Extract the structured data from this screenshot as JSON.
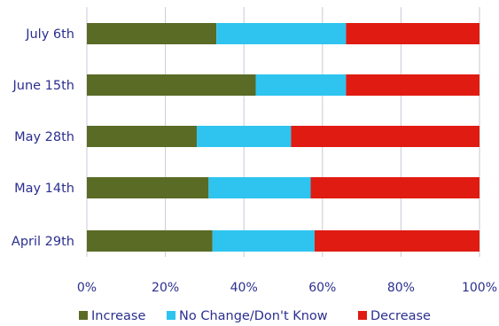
{
  "chart_data": {
    "type": "bar",
    "orientation": "horizontal",
    "stacked": "percent",
    "categories": [
      "July 6th",
      "June 15th",
      "May 28th",
      "May 14th",
      "April 29th"
    ],
    "series": [
      {
        "name": "Increase",
        "color": "#5a6b26",
        "values": [
          33,
          43,
          28,
          31,
          32
        ]
      },
      {
        "name": "No Change/Don't Know",
        "color": "#2ec4ef",
        "values": [
          33,
          23,
          24,
          26,
          26
        ]
      },
      {
        "name": "Decrease",
        "color": "#e01b12",
        "values": [
          34,
          34,
          48,
          43,
          42
        ]
      }
    ],
    "xlim": [
      0,
      100
    ],
    "xticks": [
      "0%",
      "20%",
      "40%",
      "60%",
      "80%",
      "100%"
    ],
    "grid": true,
    "legend_position": "bottom"
  }
}
